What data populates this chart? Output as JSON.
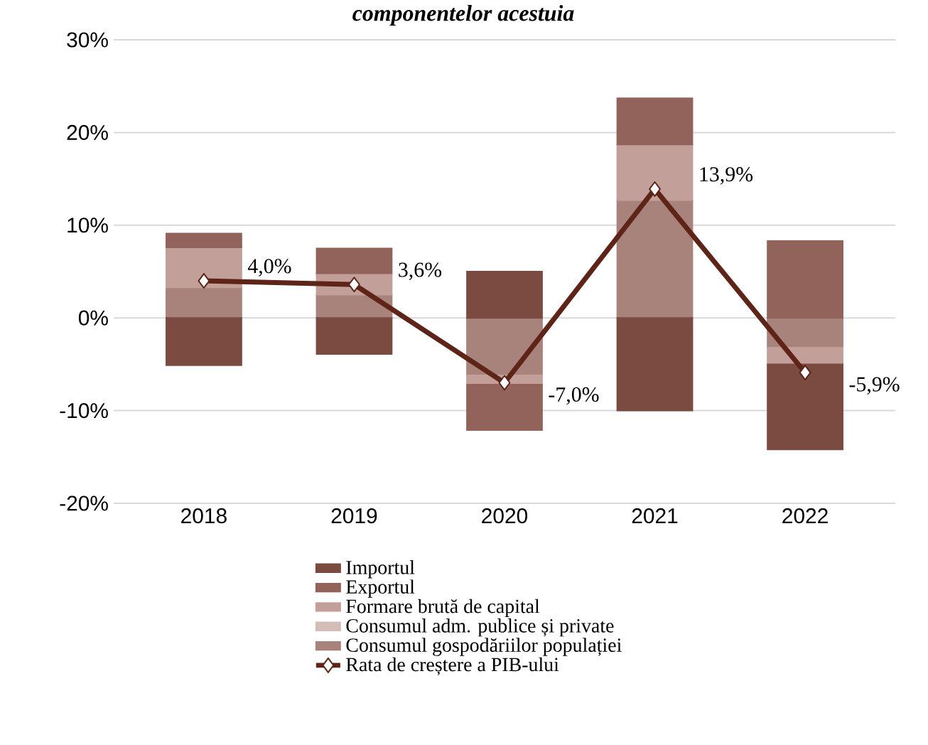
{
  "chart_data": {
    "type": "bar",
    "stacked": true,
    "title": "componentelor acestuia",
    "categories": [
      "2018",
      "2019",
      "2020",
      "2021",
      "2022"
    ],
    "series": [
      {
        "name": "Consumul gospodăriilor populației",
        "color": "#a8837b",
        "values": [
          3.3,
          2.5,
          -6.2,
          12.7,
          -3.2
        ]
      },
      {
        "name": "Consumul adm. publice și private",
        "color": "#d2bdb8",
        "values": [
          0,
          0,
          0,
          0,
          0
        ]
      },
      {
        "name": "Formare brută de capital",
        "color": "#c29f98",
        "values": [
          4.3,
          2.3,
          -1.0,
          6.0,
          -1.8
        ]
      },
      {
        "name": "Exportul",
        "color": "#92635a",
        "values": [
          1.5,
          2.7,
          -4.9,
          5.0,
          8.3
        ]
      },
      {
        "name": "Importul",
        "color": "#7b4a40",
        "values": [
          -5.1,
          -3.9,
          5.0,
          -10.0,
          -9.2
        ]
      },
      {
        "name": "Rata de creștere a PIB-ului",
        "type": "line",
        "color": "#5e2418",
        "marker": "diamond",
        "data_labels": true,
        "values": [
          4.0,
          3.6,
          -7.0,
          13.9,
          -5.9
        ],
        "value_labels": [
          "4,0%",
          "3,6%",
          "-7,0%",
          "13,9%",
          "-5,9%"
        ]
      }
    ],
    "ylim": [
      -20,
      30
    ],
    "yticks": [
      {
        "value": -20,
        "label": "-20%"
      },
      {
        "value": -10,
        "label": "-10%"
      },
      {
        "value": 0,
        "label": "0%"
      },
      {
        "value": 10,
        "label": "10%"
      },
      {
        "value": 20,
        "label": "20%"
      },
      {
        "value": 30,
        "label": "30%"
      }
    ],
    "grid": "y",
    "legend": "bottom"
  }
}
